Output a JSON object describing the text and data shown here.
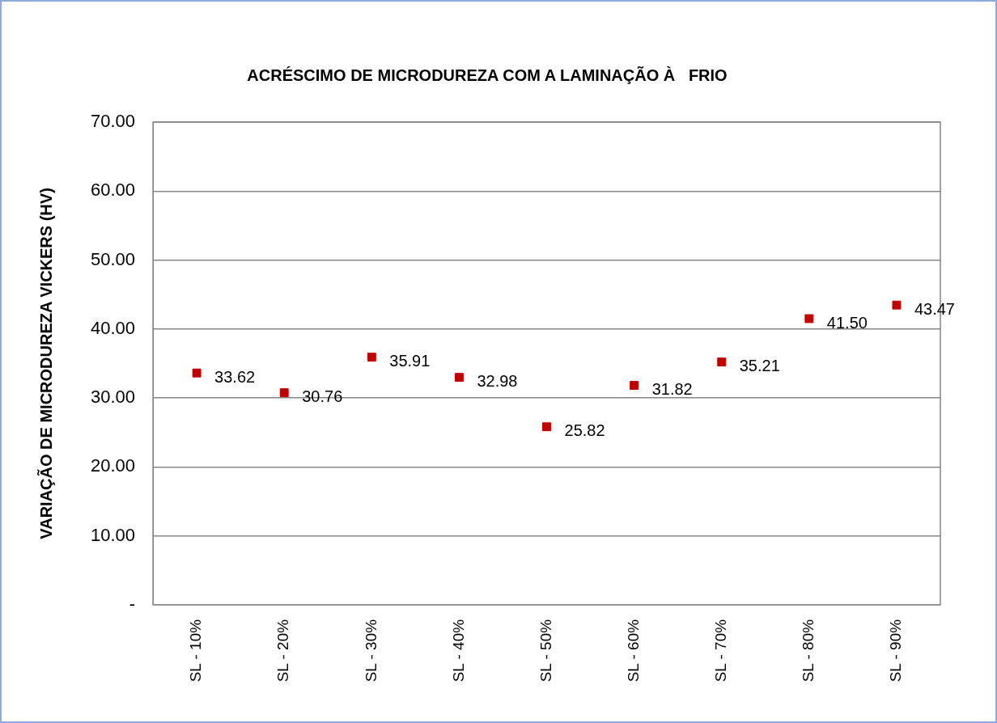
{
  "chart_data": {
    "type": "scatter",
    "title": "ACRÉSCIMO DE MICRODUREZA COM A LAMINAÇÃO À   FRIO",
    "ylabel": "VARIAÇÃO DE MICRODUREZA VICKERS (HV)",
    "categories": [
      "SL - 10%",
      "SL - 20%",
      "SL - 30%",
      "SL - 40%",
      "SL - 50%",
      "SL - 60%",
      "SL - 70%",
      "SL - 80%",
      "SL - 90%"
    ],
    "values": [
      33.62,
      30.76,
      35.91,
      32.98,
      25.82,
      31.82,
      35.21,
      41.5,
      43.47
    ],
    "value_labels": [
      "33.62",
      "30.76",
      "35.91",
      "32.98",
      "25.82",
      "31.82",
      "35.21",
      "41.50",
      "43.47"
    ],
    "color": "#c00000",
    "marker": "square",
    "legend": false,
    "grid": "y",
    "ylim": [
      0,
      70
    ],
    "yticks": [
      {
        "value": 0,
        "label": "-"
      },
      {
        "value": 10,
        "label": "10.00"
      },
      {
        "value": 20,
        "label": "20.00"
      },
      {
        "value": 30,
        "label": "30.00"
      },
      {
        "value": 40,
        "label": "40.00"
      },
      {
        "value": 50,
        "label": "50.00"
      },
      {
        "value": 60,
        "label": "60.00"
      },
      {
        "value": 70,
        "label": "70.00"
      }
    ]
  }
}
